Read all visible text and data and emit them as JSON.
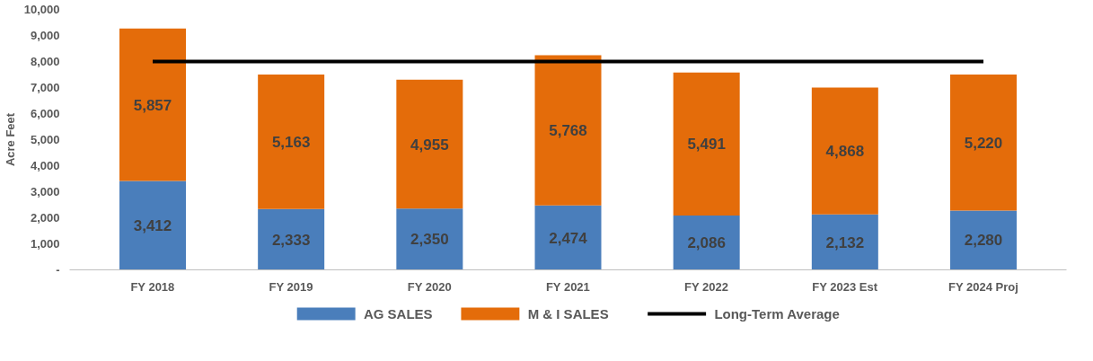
{
  "chart_data": {
    "type": "bar",
    "stacked": true,
    "ylabel": "Acre Feet",
    "categories": [
      "FY 2018",
      "FY 2019",
      "FY 2020",
      "FY 2021",
      "FY 2022",
      "FY 2023 Est",
      "FY 2024 Proj"
    ],
    "series": [
      {
        "name": "AG SALES",
        "color": "#4a7ebb",
        "values": [
          3412,
          2333,
          2350,
          2474,
          2086,
          2132,
          2280
        ],
        "value_labels": [
          "3,412",
          "2,333",
          "2,350",
          "2,474",
          "2,086",
          "2,132",
          "2,280"
        ]
      },
      {
        "name": "M & I SALES",
        "color": "#e46c0a",
        "values": [
          5857,
          5163,
          4955,
          5768,
          5491,
          4868,
          5220
        ],
        "value_labels": [
          "5,857",
          "5,163",
          "4,955",
          "5,768",
          "5,491",
          "4,868",
          "5,220"
        ]
      },
      {
        "name": "Long-Term Average",
        "type": "line",
        "color": "#000000",
        "values": [
          8000,
          8000,
          8000,
          8000,
          8000,
          8000,
          8000
        ]
      }
    ],
    "ylim": [
      0,
      10000
    ],
    "yticks": [
      {
        "value": 0,
        "label": "-"
      },
      {
        "value": 1000,
        "label": "1,000"
      },
      {
        "value": 2000,
        "label": "2,000"
      },
      {
        "value": 3000,
        "label": "3,000"
      },
      {
        "value": 4000,
        "label": "4,000"
      },
      {
        "value": 5000,
        "label": "5,000"
      },
      {
        "value": 6000,
        "label": "6,000"
      },
      {
        "value": 7000,
        "label": "7,000"
      },
      {
        "value": 8000,
        "label": "8,000"
      },
      {
        "value": 9000,
        "label": "9,000"
      },
      {
        "value": 10000,
        "label": "10,000"
      }
    ],
    "grid": false,
    "legend": "bottom"
  }
}
